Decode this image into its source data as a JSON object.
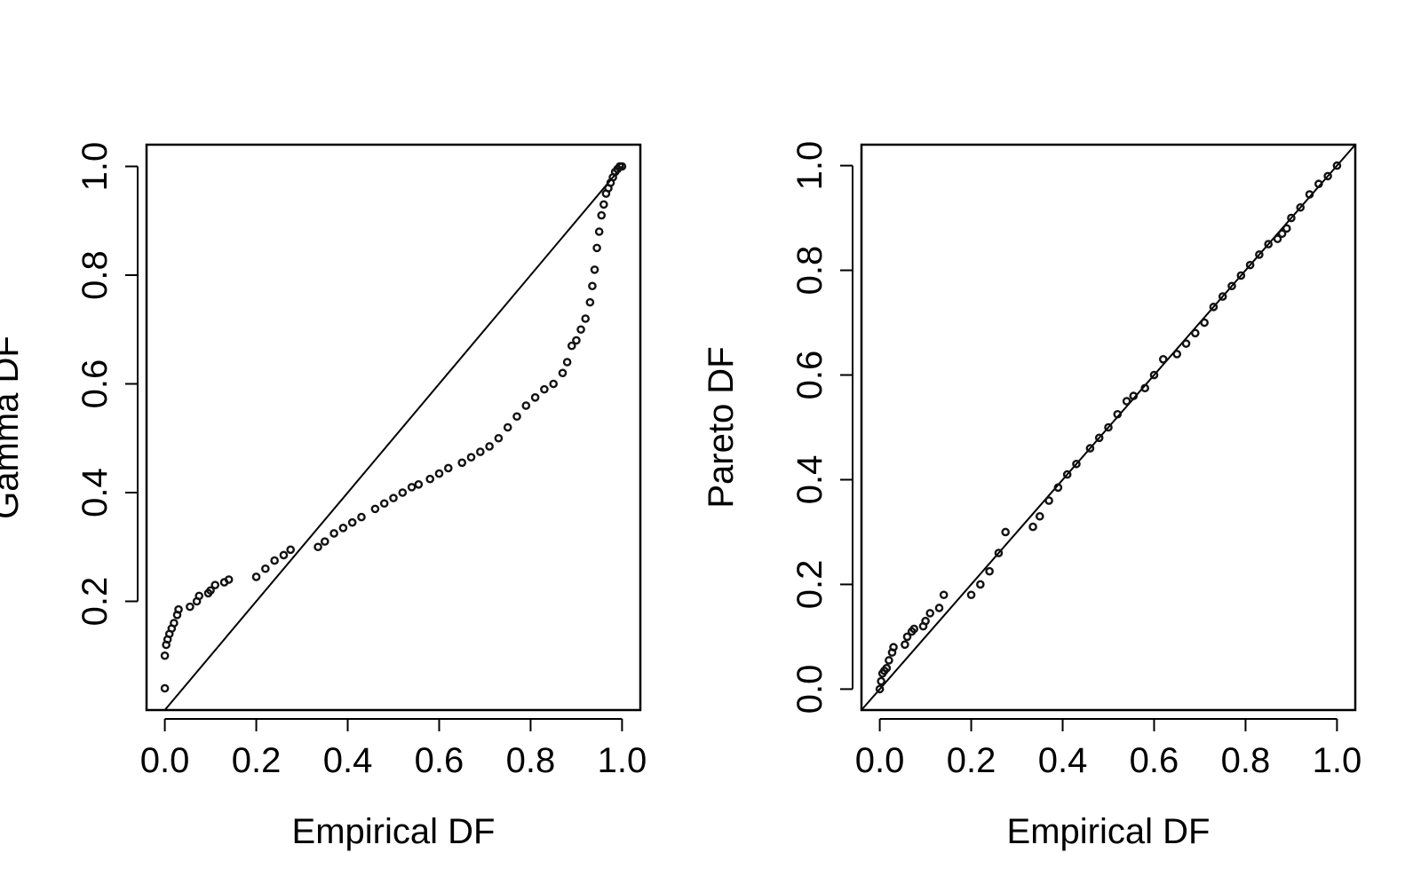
{
  "chart_data": [
    {
      "type": "scatter",
      "xlabel": "Empirical DF",
      "ylabel": "Gamma DF",
      "xlim": [
        -0.04,
        1.04
      ],
      "ylim": [
        0.0,
        1.04
      ],
      "xticks": [
        {
          "value": 0.0,
          "label": "0.0"
        },
        {
          "value": 0.2,
          "label": "0.2"
        },
        {
          "value": 0.4,
          "label": "0.4"
        },
        {
          "value": 0.6,
          "label": "0.6"
        },
        {
          "value": 0.8,
          "label": "0.8"
        },
        {
          "value": 1.0,
          "label": "1.0"
        }
      ],
      "yticks": [
        {
          "value": 0.2,
          "label": "0.2"
        },
        {
          "value": 0.4,
          "label": "0.4"
        },
        {
          "value": 0.6,
          "label": "0.6"
        },
        {
          "value": 0.8,
          "label": "0.8"
        },
        {
          "value": 1.0,
          "label": "1.0"
        }
      ],
      "reference_line": {
        "x": [
          0,
          1
        ],
        "y": [
          0,
          1
        ]
      },
      "series": [
        {
          "x": [
            0.0,
            0.0,
            0.003,
            0.006,
            0.01,
            0.015,
            0.02,
            0.027,
            0.03,
            0.055,
            0.07,
            0.075,
            0.095,
            0.1,
            0.11,
            0.13,
            0.14,
            0.2,
            0.22,
            0.24,
            0.26,
            0.275,
            0.335,
            0.35,
            0.37,
            0.39,
            0.41,
            0.43,
            0.46,
            0.48,
            0.5,
            0.52,
            0.54,
            0.555,
            0.58,
            0.6,
            0.62,
            0.65,
            0.67,
            0.69,
            0.71,
            0.73,
            0.75,
            0.77,
            0.79,
            0.81,
            0.83,
            0.85,
            0.87,
            0.88,
            0.89,
            0.9,
            0.91,
            0.92,
            0.93,
            0.935,
            0.94,
            0.945,
            0.95,
            0.955,
            0.96,
            0.965,
            0.97,
            0.975,
            0.98,
            0.985,
            0.99,
            0.995,
            1.0
          ],
          "y": [
            0.04,
            0.1,
            0.12,
            0.13,
            0.14,
            0.15,
            0.16,
            0.175,
            0.185,
            0.19,
            0.2,
            0.21,
            0.215,
            0.22,
            0.23,
            0.235,
            0.24,
            0.245,
            0.26,
            0.275,
            0.285,
            0.295,
            0.3,
            0.31,
            0.325,
            0.335,
            0.345,
            0.355,
            0.37,
            0.38,
            0.39,
            0.4,
            0.41,
            0.415,
            0.425,
            0.435,
            0.445,
            0.455,
            0.465,
            0.475,
            0.485,
            0.5,
            0.52,
            0.54,
            0.56,
            0.575,
            0.59,
            0.6,
            0.62,
            0.64,
            0.67,
            0.68,
            0.7,
            0.72,
            0.75,
            0.78,
            0.81,
            0.85,
            0.88,
            0.91,
            0.93,
            0.95,
            0.96,
            0.97,
            0.98,
            0.99,
            0.995,
            1.0,
            1.0
          ]
        }
      ]
    },
    {
      "type": "scatter",
      "xlabel": "Empirical DF",
      "ylabel": "Pareto DF",
      "xlim": [
        -0.04,
        1.04
      ],
      "ylim": [
        -0.04,
        1.04
      ],
      "xticks": [
        {
          "value": 0.0,
          "label": "0.0"
        },
        {
          "value": 0.2,
          "label": "0.2"
        },
        {
          "value": 0.4,
          "label": "0.4"
        },
        {
          "value": 0.6,
          "label": "0.6"
        },
        {
          "value": 0.8,
          "label": "0.8"
        },
        {
          "value": 1.0,
          "label": "1.0"
        }
      ],
      "yticks": [
        {
          "value": 0.0,
          "label": "0.0"
        },
        {
          "value": 0.2,
          "label": "0.2"
        },
        {
          "value": 0.4,
          "label": "0.4"
        },
        {
          "value": 0.6,
          "label": "0.6"
        },
        {
          "value": 0.8,
          "label": "0.8"
        },
        {
          "value": 1.0,
          "label": "1.0"
        }
      ],
      "reference_line": {
        "x": [
          -0.04,
          1.04
        ],
        "y": [
          -0.04,
          1.04
        ]
      },
      "series": [
        {
          "x": [
            0.0,
            0.003,
            0.006,
            0.01,
            0.015,
            0.02,
            0.027,
            0.03,
            0.055,
            0.06,
            0.07,
            0.075,
            0.095,
            0.1,
            0.11,
            0.13,
            0.14,
            0.2,
            0.22,
            0.24,
            0.26,
            0.275,
            0.335,
            0.35,
            0.37,
            0.39,
            0.41,
            0.43,
            0.46,
            0.48,
            0.5,
            0.52,
            0.54,
            0.555,
            0.58,
            0.6,
            0.62,
            0.65,
            0.67,
            0.69,
            0.71,
            0.73,
            0.75,
            0.77,
            0.79,
            0.81,
            0.83,
            0.85,
            0.87,
            0.88,
            0.89,
            0.9,
            0.92,
            0.94,
            0.96,
            0.98,
            1.0
          ],
          "y": [
            0.0,
            0.015,
            0.03,
            0.035,
            0.04,
            0.055,
            0.07,
            0.08,
            0.085,
            0.1,
            0.11,
            0.115,
            0.12,
            0.13,
            0.145,
            0.155,
            0.18,
            0.18,
            0.2,
            0.225,
            0.26,
            0.3,
            0.31,
            0.33,
            0.36,
            0.385,
            0.41,
            0.43,
            0.46,
            0.48,
            0.5,
            0.525,
            0.55,
            0.56,
            0.575,
            0.6,
            0.63,
            0.64,
            0.66,
            0.68,
            0.7,
            0.73,
            0.75,
            0.77,
            0.79,
            0.81,
            0.83,
            0.85,
            0.86,
            0.87,
            0.88,
            0.9,
            0.92,
            0.945,
            0.965,
            0.98,
            1.0
          ]
        }
      ]
    }
  ]
}
